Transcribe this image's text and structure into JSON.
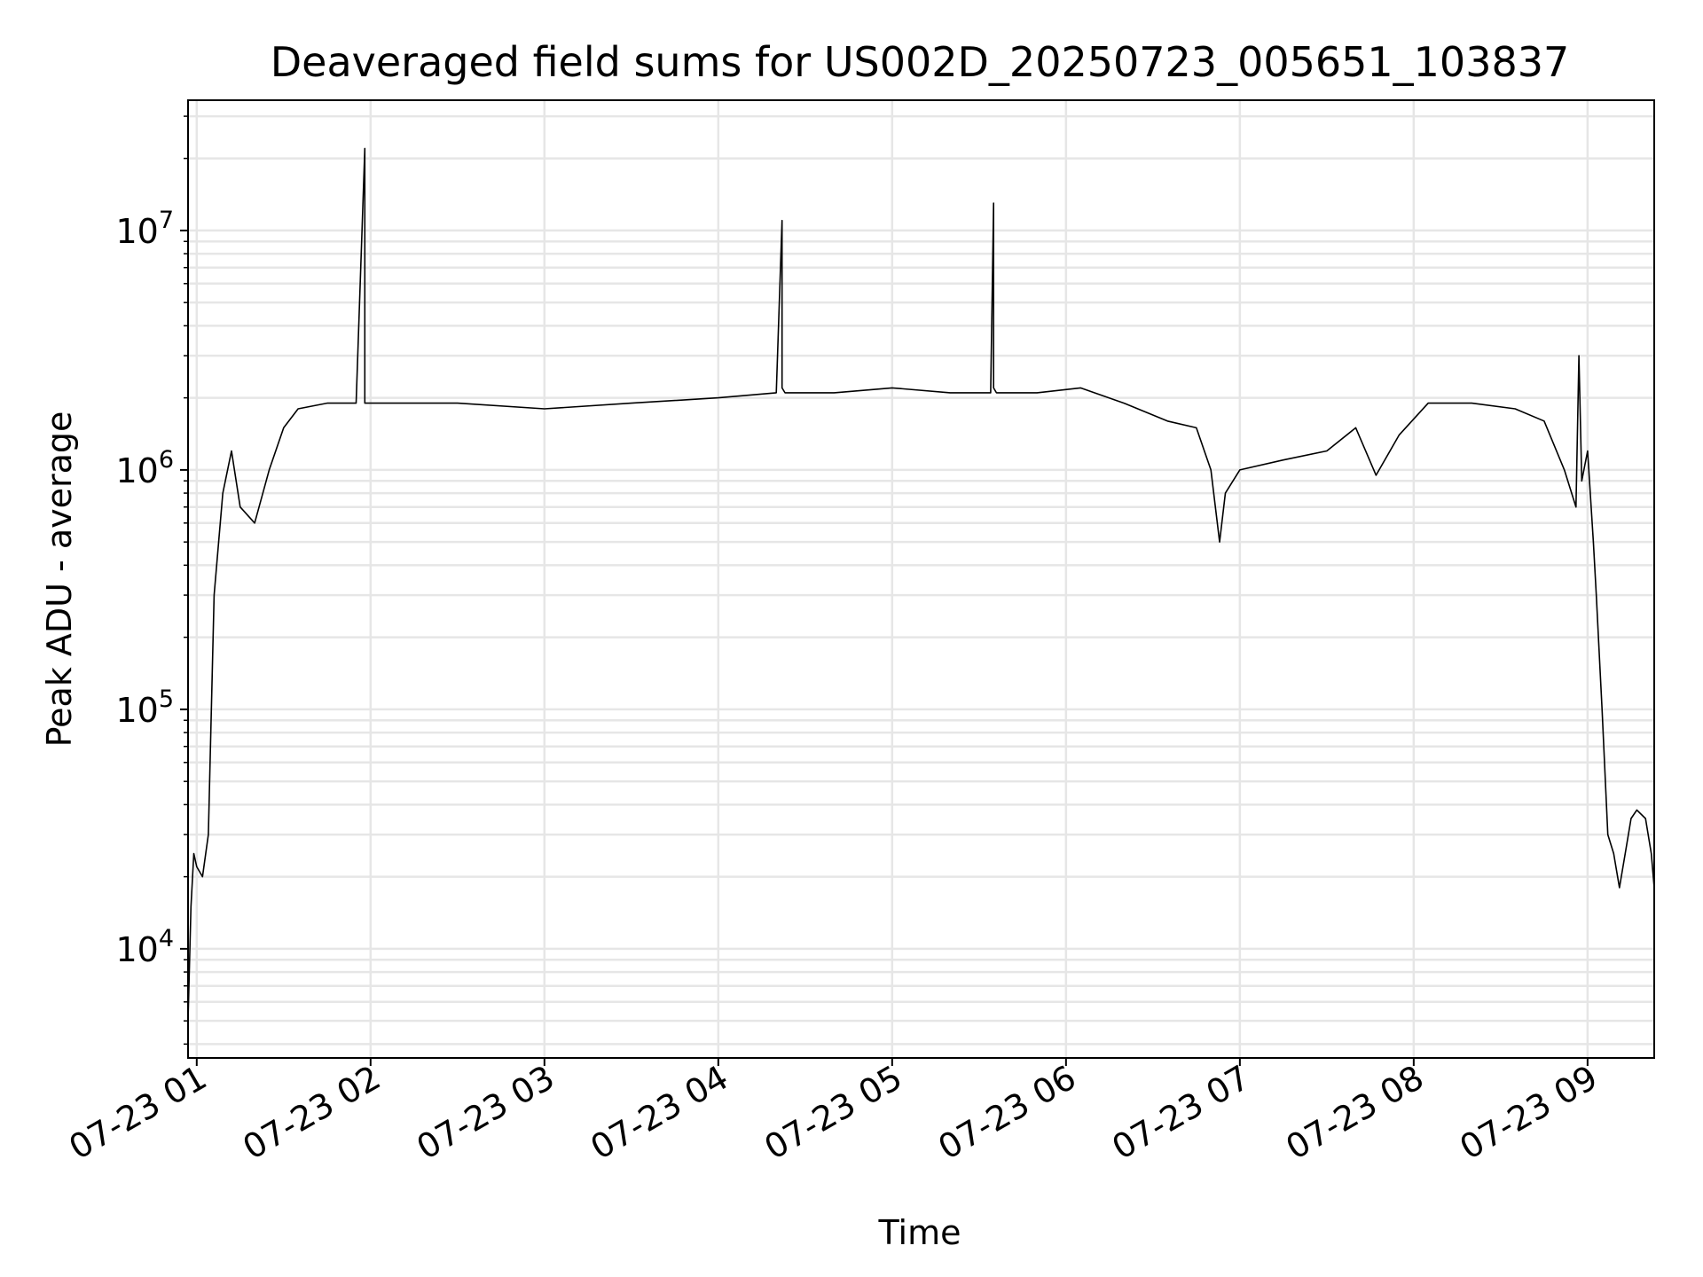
{
  "chart_data": {
    "type": "line",
    "title": "Deaveraged field sums for US002D_20250723_005651_103837",
    "xlabel": "Time",
    "ylabel": "Peak ADU - average",
    "y_scale": "log",
    "ylim": [
      3500,
      35000000
    ],
    "xlim": [
      "07-23 00:57",
      "07-23 09:23"
    ],
    "grid": true,
    "x_ticks": [
      "07-23 01",
      "07-23 02",
      "07-23 03",
      "07-23 04",
      "07-23 05",
      "07-23 06",
      "07-23 07",
      "07-23 08",
      "07-23 09"
    ],
    "y_ticks": [
      {
        "value": 10000,
        "base": "10",
        "exp": "4"
      },
      {
        "value": 100000,
        "base": "10",
        "exp": "5"
      },
      {
        "value": 1000000,
        "base": "10",
        "exp": "6"
      },
      {
        "value": 10000000,
        "base": "10",
        "exp": "7"
      }
    ],
    "series": [
      {
        "color": "#000000",
        "x": [
          "07-23 00:57",
          "07-23 00:58",
          "07-23 00:59",
          "07-23 01:00",
          "07-23 01:02",
          "07-23 01:04",
          "07-23 01:06",
          "07-23 01:09",
          "07-23 01:12",
          "07-23 01:15",
          "07-23 01:20",
          "07-23 01:25",
          "07-23 01:30",
          "07-23 01:35",
          "07-23 01:45",
          "07-23 01:55",
          "07-23 01:58",
          "07-23 01:58",
          "07-23 01:59",
          "07-23 02:10",
          "07-23 02:30",
          "07-23 03:00",
          "07-23 03:30",
          "07-23 04:00",
          "07-23 04:20",
          "07-23 04:22",
          "07-23 04:22",
          "07-23 04:23",
          "07-23 04:40",
          "07-23 05:00",
          "07-23 05:20",
          "07-23 05:34",
          "07-23 05:35",
          "07-23 05:35",
          "07-23 05:36",
          "07-23 05:50",
          "07-23 06:05",
          "07-23 06:20",
          "07-23 06:35",
          "07-23 06:45",
          "07-23 06:50",
          "07-23 06:53",
          "07-23 06:55",
          "07-23 07:00",
          "07-23 07:15",
          "07-23 07:30",
          "07-23 07:40",
          "07-23 07:47",
          "07-23 07:55",
          "07-23 08:05",
          "07-23 08:20",
          "07-23 08:35",
          "07-23 08:45",
          "07-23 08:52",
          "07-23 08:56",
          "07-23 08:57",
          "07-23 08:58",
          "07-23 09:00",
          "07-23 09:02",
          "07-23 09:03",
          "07-23 09:05",
          "07-23 09:07",
          "07-23 09:09",
          "07-23 09:11",
          "07-23 09:13",
          "07-23 09:15",
          "07-23 09:17",
          "07-23 09:20",
          "07-23 09:22",
          "07-23 09:23"
        ],
        "y": [
          5000,
          15000,
          25000,
          22000,
          20000,
          30000,
          300000,
          800000,
          1200000,
          700000,
          600000,
          1000000,
          1500000,
          1800000,
          1900000,
          1900000,
          22000000,
          1900000,
          1900000,
          1900000,
          1900000,
          1800000,
          1900000,
          2000000,
          2100000,
          11000000,
          2200000,
          2100000,
          2100000,
          2200000,
          2100000,
          2100000,
          13000000,
          2200000,
          2100000,
          2100000,
          2200000,
          1900000,
          1600000,
          1500000,
          1000000,
          500000,
          800000,
          1000000,
          1100000,
          1200000,
          1500000,
          950000,
          1400000,
          1900000,
          1900000,
          1800000,
          1600000,
          1000000,
          700000,
          3000000,
          900000,
          1200000,
          500000,
          300000,
          100000,
          30000,
          25000,
          18000,
          25000,
          35000,
          38000,
          35000,
          25000,
          18000
        ]
      }
    ]
  }
}
